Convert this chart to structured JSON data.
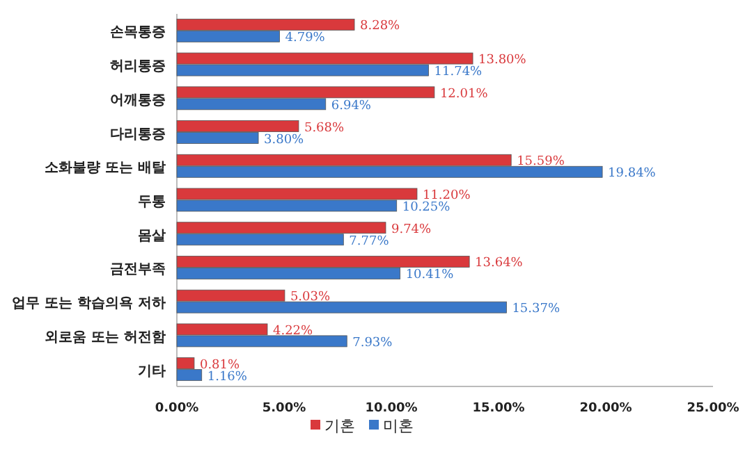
{
  "chart_data": {
    "type": "bar",
    "orientation": "horizontal",
    "categories": [
      "손목통증",
      "허리통증",
      "어깨통증",
      "다리통증",
      "소화불량 또는 배탈",
      "두통",
      "몸살",
      "금전부족",
      "업무 또는 학습의욕 저하",
      "외로움 또는 허전함",
      "기타"
    ],
    "series": [
      {
        "name": "기혼",
        "color": "#d9393c",
        "values": [
          8.28,
          13.8,
          12.01,
          5.68,
          15.59,
          11.2,
          9.74,
          13.64,
          5.03,
          4.22,
          0.81
        ],
        "value_labels": [
          "8.28%",
          "13.80%",
          "12.01%",
          "5.68%",
          "15.59%",
          "11.20%",
          "9.74%",
          "13.64%",
          "5.03%",
          "4.22%",
          "0.81%"
        ]
      },
      {
        "name": "미혼",
        "color": "#3a78c9",
        "values": [
          4.79,
          11.74,
          6.94,
          3.8,
          19.84,
          10.25,
          7.77,
          10.41,
          15.37,
          7.93,
          1.16
        ],
        "value_labels": [
          "4.79%",
          "11.74%",
          "6.94%",
          "3.80%",
          "19.84%",
          "10.25%",
          "7.77%",
          "10.41%",
          "15.37%",
          "7.93%",
          "1.16%"
        ]
      }
    ],
    "xlim": [
      0,
      25
    ],
    "xticks": [
      {
        "value": 0,
        "label": "0.00%"
      },
      {
        "value": 5,
        "label": "5.00%"
      },
      {
        "value": 10,
        "label": "10.00%"
      },
      {
        "value": 15,
        "label": "15.00%"
      },
      {
        "value": 20,
        "label": "20.00%"
      },
      {
        "value": 25,
        "label": "25.00%"
      }
    ],
    "legend": "bottom",
    "grid": false
  }
}
